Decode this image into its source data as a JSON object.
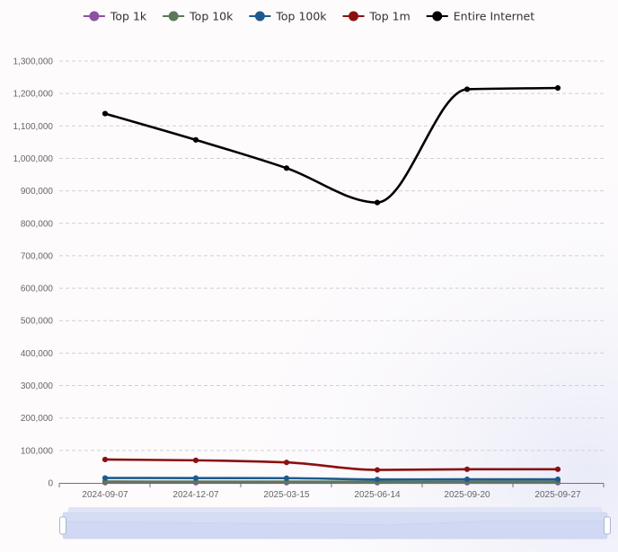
{
  "chart_data": {
    "type": "line",
    "x": [
      "2024-09-07",
      "2024-12-07",
      "2025-03-15",
      "2025-06-14",
      "2025-09-20",
      "2025-09-27"
    ],
    "series": [
      {
        "name": "Top 1k",
        "color": "#8e52a1",
        "values": [
          520,
          510,
          500,
          460,
          470,
          470
        ]
      },
      {
        "name": "Top 10k",
        "color": "#5a7a5a",
        "values": [
          4200,
          4100,
          4000,
          3400,
          3500,
          3500
        ]
      },
      {
        "name": "Top 100k",
        "color": "#1f5a8e",
        "values": [
          15000,
          14800,
          14500,
          10500,
          11000,
          11000
        ]
      },
      {
        "name": "Top 1m",
        "color": "#8b1010",
        "values": [
          72000,
          69500,
          63000,
          40000,
          42000,
          42000
        ]
      },
      {
        "name": "Entire Internet",
        "color": "#000000",
        "values": [
          1138000,
          1057000,
          970000,
          864000,
          1213000,
          1217000
        ]
      }
    ],
    "y_ticks": [
      "0",
      "100,000",
      "200,000",
      "300,000",
      "400,000",
      "500,000",
      "600,000",
      "700,000",
      "800,000",
      "900,000",
      "1,000,000",
      "1,100,000",
      "1,200,000",
      "1,300,000"
    ],
    "ylim": [
      0,
      1300000
    ],
    "grid": true,
    "legend_position": "top",
    "title": "",
    "xlabel": "",
    "ylabel": "",
    "data_zoom": {
      "start": 0.0,
      "end": 1.0
    }
  }
}
